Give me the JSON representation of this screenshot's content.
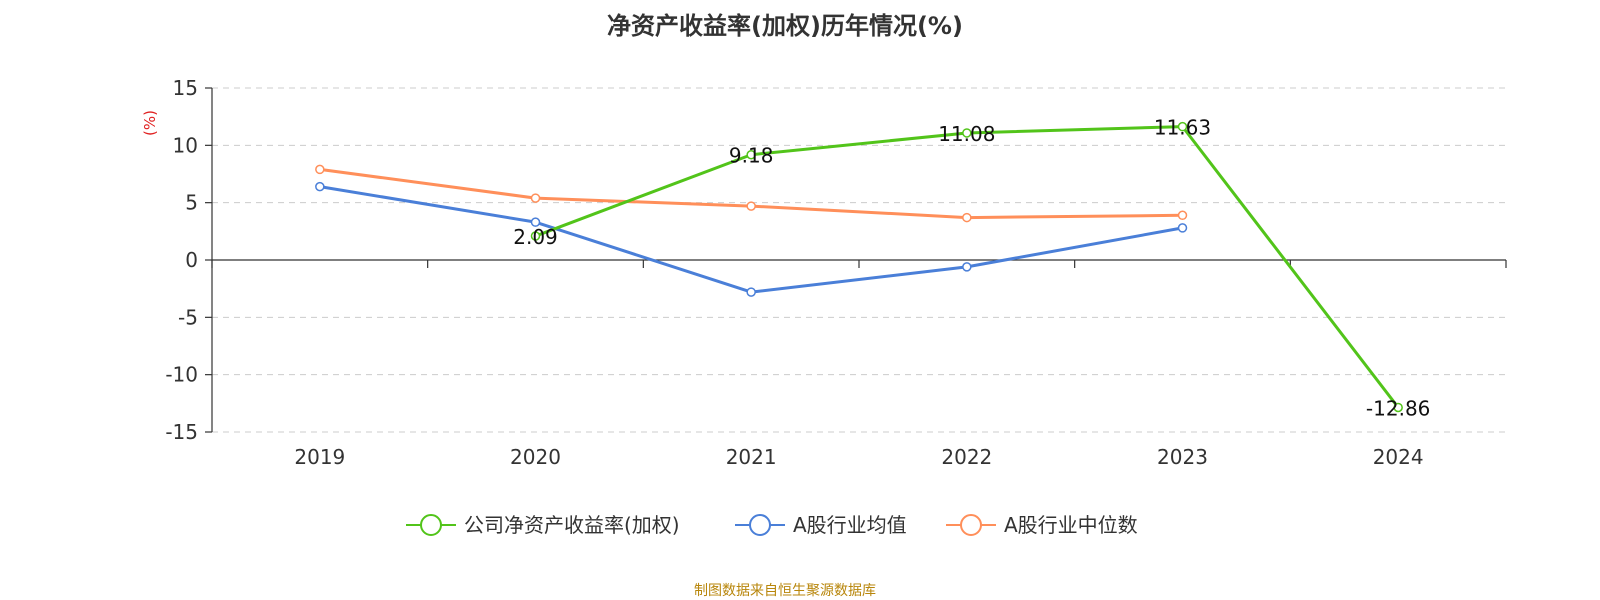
{
  "title": "净资产收益率(加权)历年情况(%)",
  "source_note": "制图数据来自恒生聚源数据库",
  "chart_data": {
    "type": "line",
    "title": "净资产收益率(加权)历年情况(%)",
    "categories": [
      "2019",
      "2020",
      "2021",
      "2022",
      "2023",
      "2024"
    ],
    "ylabel": "(%)",
    "ylabel_color": "#e02020",
    "ylim": [
      -15,
      15
    ],
    "yticks": [
      15,
      10,
      5,
      0,
      -5,
      -10,
      -15
    ],
    "ytick_labels": [
      "15",
      "10",
      "5",
      "0",
      "-5",
      "-10",
      "-15"
    ],
    "grid": true,
    "legend_position": "bottom-center",
    "series": [
      {
        "name": "公司净资产收益率(加权)",
        "color": "#52c41a",
        "values": [
          null,
          2.09,
          9.18,
          11.08,
          11.63,
          -12.86
        ],
        "labels": [
          "",
          "2.09",
          "9.18",
          "11.08",
          "11.63",
          "-12.86"
        ]
      },
      {
        "name": "A股行业均值",
        "color": "#4a7fd8",
        "values": [
          6.4,
          3.3,
          -2.8,
          -0.6,
          2.8,
          null
        ]
      },
      {
        "name": "A股行业中位数",
        "color": "#ff8f5a",
        "values": [
          7.9,
          5.4,
          4.7,
          3.7,
          3.9,
          null
        ]
      }
    ]
  }
}
